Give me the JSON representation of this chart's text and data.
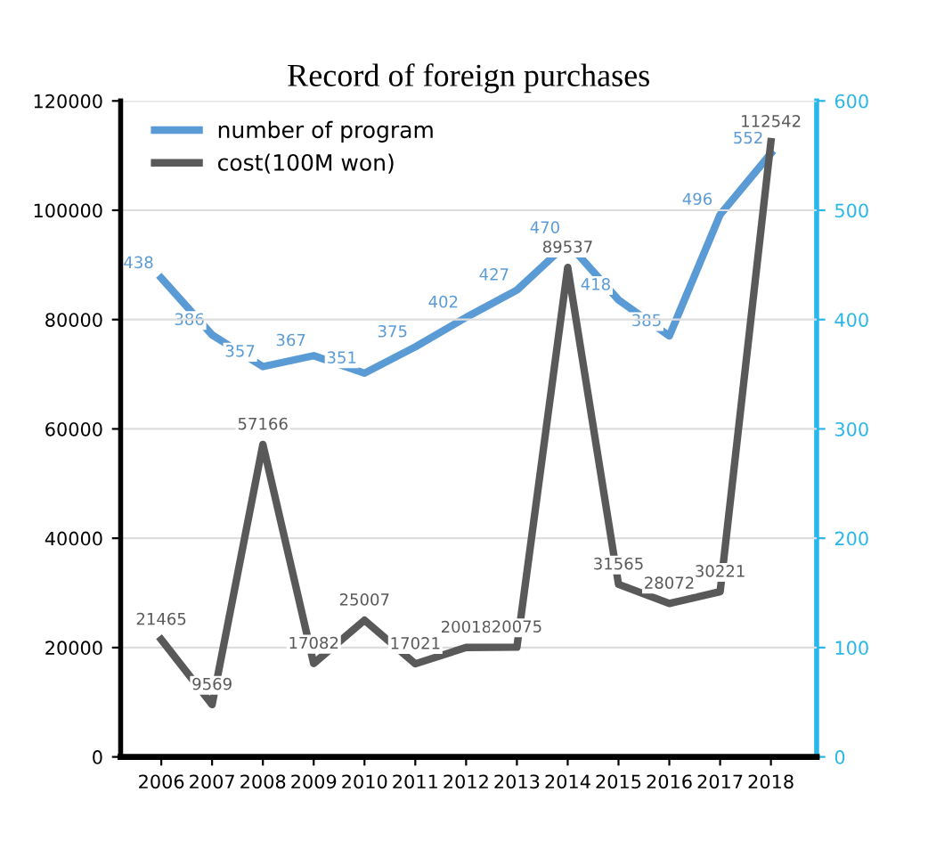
{
  "chart_data": {
    "type": "line",
    "title": "Record of foreign purchases",
    "categories": [
      "2006",
      "2007",
      "2008",
      "2009",
      "2010",
      "2011",
      "2012",
      "2013",
      "2014",
      "2015",
      "2016",
      "2017",
      "2018"
    ],
    "series": [
      {
        "name": "number of program",
        "color": "#5b9bd5",
        "axis": "y2",
        "values": [
          438,
          386,
          357,
          367,
          351,
          375,
          402,
          427,
          470,
          418,
          385,
          496,
          552
        ]
      },
      {
        "name": "cost(100M won)",
        "color": "#595959",
        "values": [
          21465,
          9569,
          57166,
          17082,
          25007,
          17021,
          20018,
          20075,
          89537,
          31565,
          28072,
          30221,
          112542
        ]
      }
    ],
    "ylim": [
      0,
      120000
    ],
    "yticks": [
      0,
      20000,
      40000,
      60000,
      80000,
      100000,
      120000
    ],
    "y2lim": [
      0,
      600
    ],
    "y2ticks": [
      0,
      100,
      200,
      300,
      400,
      500,
      600
    ],
    "data_labels": true,
    "grid": "y",
    "legend": "top left",
    "marker": "none",
    "line_style": "solid"
  }
}
